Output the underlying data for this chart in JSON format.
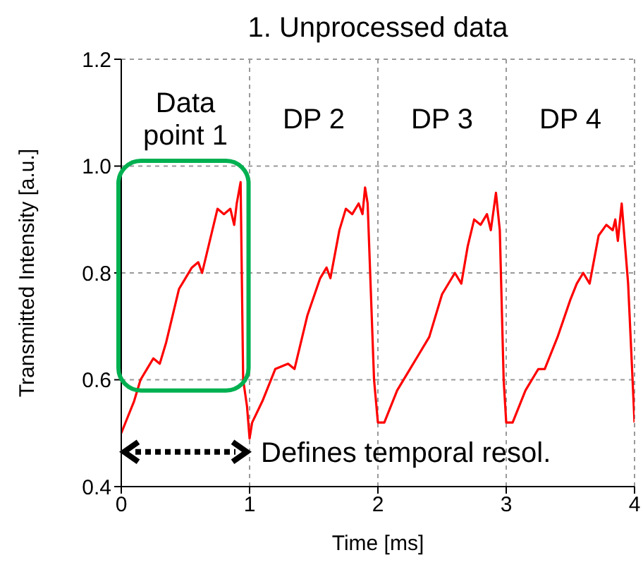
{
  "chart_data": {
    "type": "line",
    "title": "1. Unprocessed data",
    "xlabel": "Time [ms]",
    "ylabel": "Transmitted Intensity [a.u.]",
    "x": [
      0,
      0.05,
      0.1,
      0.15,
      0.2,
      0.25,
      0.3,
      0.35,
      0.4,
      0.45,
      0.5,
      0.55,
      0.6,
      0.63,
      0.7,
      0.75,
      0.8,
      0.85,
      0.88,
      0.9,
      0.93,
      0.95,
      0.98,
      1.0,
      1.02,
      1.1,
      1.2,
      1.3,
      1.35,
      1.45,
      1.55,
      1.6,
      1.63,
      1.7,
      1.75,
      1.8,
      1.85,
      1.88,
      1.9,
      1.92,
      1.97,
      2.0,
      2.05,
      2.15,
      2.25,
      2.3,
      2.4,
      2.5,
      2.6,
      2.65,
      2.7,
      2.75,
      2.8,
      2.85,
      2.88,
      2.92,
      2.95,
      2.98,
      3.0,
      3.05,
      3.15,
      3.25,
      3.3,
      3.4,
      3.5,
      3.55,
      3.6,
      3.65,
      3.72,
      3.78,
      3.83,
      3.85,
      3.87,
      3.9,
      3.95,
      4.0
    ],
    "series": [
      {
        "color": "#ff0000",
        "values": [
          0.5,
          0.53,
          0.56,
          0.6,
          0.62,
          0.64,
          0.63,
          0.67,
          0.72,
          0.77,
          0.79,
          0.81,
          0.82,
          0.8,
          0.87,
          0.92,
          0.91,
          0.92,
          0.89,
          0.93,
          0.97,
          0.6,
          0.55,
          0.49,
          0.52,
          0.56,
          0.62,
          0.63,
          0.62,
          0.72,
          0.79,
          0.81,
          0.79,
          0.88,
          0.92,
          0.91,
          0.93,
          0.91,
          0.96,
          0.93,
          0.6,
          0.52,
          0.52,
          0.58,
          0.62,
          0.64,
          0.68,
          0.76,
          0.8,
          0.78,
          0.85,
          0.9,
          0.89,
          0.91,
          0.88,
          0.95,
          0.88,
          0.6,
          0.52,
          0.52,
          0.58,
          0.62,
          0.62,
          0.68,
          0.75,
          0.78,
          0.8,
          0.78,
          0.87,
          0.89,
          0.88,
          0.9,
          0.86,
          0.93,
          0.78,
          0.52
        ]
      }
    ],
    "xlim": [
      0,
      4
    ],
    "xticks": [
      0,
      1,
      2,
      3,
      4
    ],
    "ylim": [
      0.4,
      1.2
    ],
    "yticks": [
      {
        "value": 0.4,
        "label": "0.4"
      },
      {
        "value": 0.6,
        "label": "0.6"
      },
      {
        "value": 0.8,
        "label": "0.8"
      },
      {
        "value": 1.0,
        "label": "1.0"
      },
      {
        "value": 1.2,
        "label": "1.2"
      }
    ],
    "grid": true,
    "legend": false,
    "marker": "none",
    "line_style": "solid",
    "annotations": [
      "Data point 1",
      "DP 2",
      "DP 3",
      "DP 4",
      "Defines temporal resol."
    ]
  }
}
